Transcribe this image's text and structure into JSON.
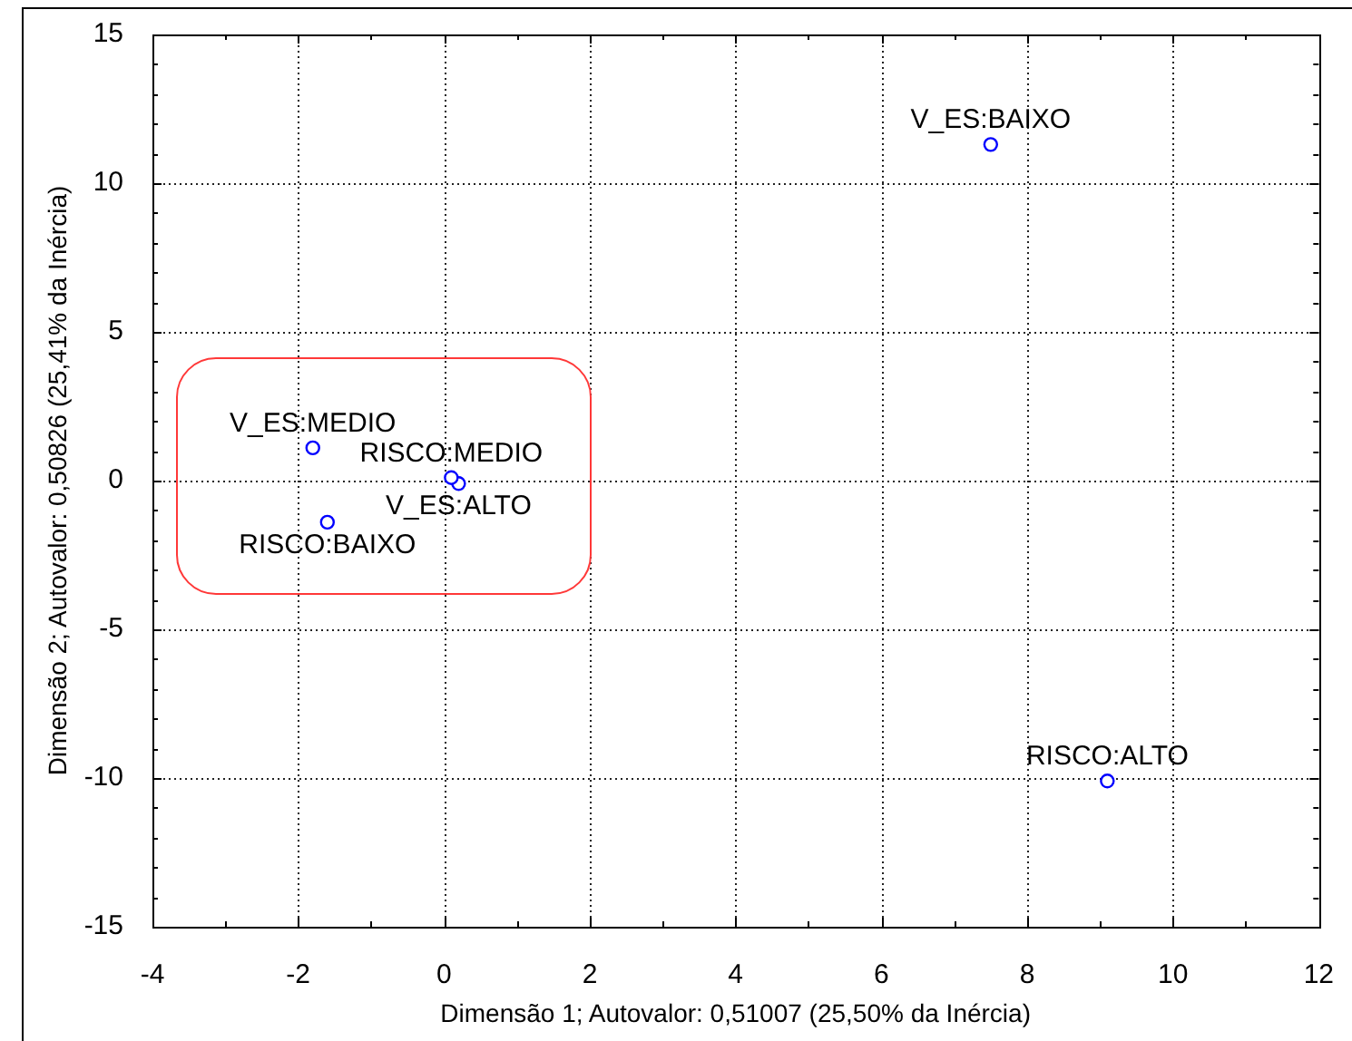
{
  "chart_data": {
    "type": "scatter",
    "xlabel": "Dimensão 1; Autovalor: 0,51007 (25,50% da Inércia)",
    "ylabel": "Dimensão 2; Autovalor: 0,50826 (25,41% da Inércia)",
    "series": [
      {
        "name": "V_ES:BAIXO",
        "color": "#0000ff",
        "x": [
          7.5
        ],
        "values": [
          11.3
        ]
      },
      {
        "name": "V_ES:MEDIO",
        "color": "#0000ff",
        "x": [
          -1.8
        ],
        "values": [
          1.1
        ]
      },
      {
        "name": "RISCO:MEDIO",
        "color": "#0000ff",
        "x": [
          0.1
        ],
        "values": [
          0.1
        ]
      },
      {
        "name": "V_ES:ALTO",
        "color": "#0000ff",
        "x": [
          0.2
        ],
        "values": [
          -0.1
        ]
      },
      {
        "name": "RISCO:BAIXO",
        "color": "#0000ff",
        "x": [
          -1.6
        ],
        "values": [
          -1.4
        ]
      },
      {
        "name": "RISCO:ALTO",
        "color": "#0000ff",
        "x": [
          9.1
        ],
        "values": [
          -10.1
        ]
      }
    ],
    "xlim": [
      -4,
      12
    ],
    "xticks": [
      -4,
      {
        "value": -3,
        "label": null
      },
      -2,
      {
        "value": -1,
        "label": null
      },
      0,
      {
        "value": 1,
        "label": null
      },
      2,
      {
        "value": 3,
        "label": null
      },
      4,
      {
        "value": 5,
        "label": null
      },
      6,
      {
        "value": 7,
        "label": null
      },
      8,
      {
        "value": 9,
        "label": null
      },
      10,
      {
        "value": 11,
        "label": null
      },
      12
    ],
    "ylim": [
      -15,
      15
    ],
    "yticks": [
      -15,
      {
        "value": -14,
        "label": null
      },
      {
        "value": -13,
        "label": null
      },
      {
        "value": -12,
        "label": null
      },
      {
        "value": -11,
        "label": null
      },
      -10,
      {
        "value": -9,
        "label": null
      },
      {
        "value": -8,
        "label": null
      },
      {
        "value": -7,
        "label": null
      },
      {
        "value": -6,
        "label": null
      },
      -5,
      {
        "value": -4,
        "label": null
      },
      {
        "value": -3,
        "label": null
      },
      {
        "value": -2,
        "label": null
      },
      {
        "value": -1,
        "label": null
      },
      0,
      {
        "value": 1,
        "label": null
      },
      {
        "value": 2,
        "label": null
      },
      {
        "value": 3,
        "label": null
      },
      {
        "value": 4,
        "label": null
      },
      5,
      {
        "value": 6,
        "label": null
      },
      {
        "value": 7,
        "label": null
      },
      {
        "value": 8,
        "label": null
      },
      {
        "value": 9,
        "label": null
      },
      10,
      {
        "value": 11,
        "label": null
      },
      {
        "value": 12,
        "label": null
      },
      {
        "value": 13,
        "label": null
      },
      {
        "value": 14,
        "label": null
      },
      15
    ],
    "grid": true,
    "legend": false,
    "marker": "circle"
  }
}
